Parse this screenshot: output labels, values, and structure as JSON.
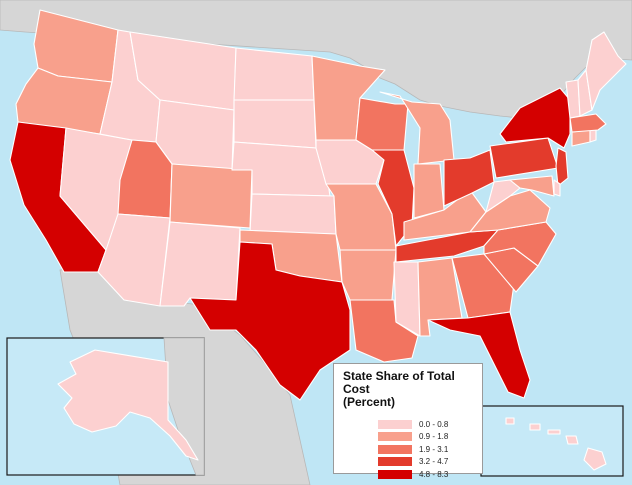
{
  "legend": {
    "title_line1": "State Share of Total Cost",
    "title_line2": "(Percent)",
    "classes": [
      {
        "label": "0.0 - 0.8",
        "color": "#fcd0d0"
      },
      {
        "label": "0.9 - 1.8",
        "color": "#f8a08c"
      },
      {
        "label": "1.9 - 3.1",
        "color": "#f27460"
      },
      {
        "label": "3.2 - 4.7",
        "color": "#e33b2c"
      },
      {
        "label": "4.8 - 8.3",
        "color": "#d40000"
      }
    ]
  },
  "colors": {
    "water": "#bfe6f5",
    "other_land": "#d6d6d6",
    "state_border": "#ffffff"
  },
  "state_classes": {
    "WA": 1,
    "OR": 1,
    "CA": 4,
    "NV": 0,
    "ID": 0,
    "MT": 0,
    "WY": 0,
    "UT": 2,
    "AZ": 0,
    "CO": 1,
    "NM": 0,
    "ND": 0,
    "SD": 0,
    "NE": 0,
    "KS": 0,
    "OK": 1,
    "TX": 4,
    "MN": 1,
    "IA": 0,
    "MO": 1,
    "AR": 1,
    "LA": 2,
    "WI": 2,
    "IL": 3,
    "MS": 0,
    "MI": 1,
    "IN": 1,
    "KY": 1,
    "TN": 3,
    "AL": 1,
    "OH": 3,
    "GA": 2,
    "FL": 4,
    "SC": 2,
    "NC": 2,
    "VA": 1,
    "WV": 0,
    "PA": 3,
    "NY": 4,
    "VT": 0,
    "NH": 0,
    "ME": 0,
    "MA": 2,
    "CT": 1,
    "RI": 0,
    "NJ": 3,
    "DE": 0,
    "MD": 1,
    "AK": 0,
    "HI": 0
  }
}
